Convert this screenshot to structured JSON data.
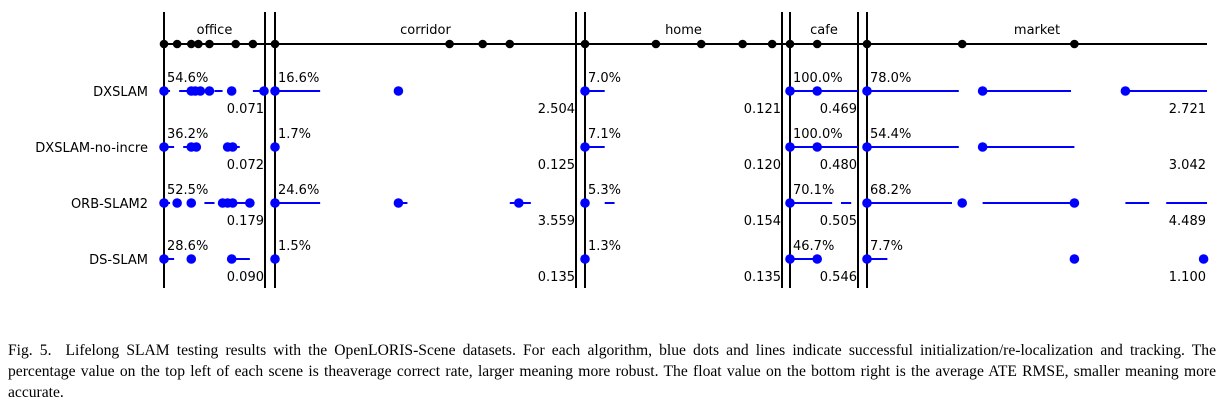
{
  "chart_data": {
    "type": "timeline",
    "description_colors": {
      "success": "#0000ff",
      "boundary": "#000000"
    },
    "scenes": [
      {
        "name": "office",
        "sequence_markers": [
          0,
          0.13,
          0.27,
          0.34,
          0.45,
          0.71,
          0.88
        ]
      },
      {
        "name": "corridor",
        "sequence_markers": [
          0,
          0.58,
          0.69,
          0.78
        ]
      },
      {
        "name": "home",
        "sequence_markers": [
          0,
          0.36,
          0.59,
          0.8,
          0.95
        ]
      },
      {
        "name": "cafe",
        "sequence_markers": [
          0,
          0.4
        ]
      },
      {
        "name": "market",
        "sequence_markers": [
          0,
          0.28,
          0.61
        ]
      }
    ],
    "algorithms": [
      {
        "name": "DXSLAM",
        "results": [
          {
            "scene": "office",
            "correct_rate": "54.6%",
            "ate_rmse": "0.071",
            "dots": [
              0,
              0.27,
              0.31,
              0.36,
              0.45,
              0.67,
              0.99
            ],
            "segments": [
              [
                0.0,
                0.06
              ],
              [
                0.15,
                0.27
              ],
              [
                0.5,
                0.58
              ],
              [
                0.88,
                0.98
              ]
            ]
          },
          {
            "scene": "corridor",
            "correct_rate": "16.6%",
            "ate_rmse": "2.504",
            "dots": [
              0,
              0.41
            ],
            "segments": [
              [
                0.0,
                0.15
              ]
            ]
          },
          {
            "scene": "home",
            "correct_rate": "7.0%",
            "ate_rmse": "0.121",
            "dots": [
              0
            ],
            "segments": [
              [
                0.0,
                0.1
              ]
            ]
          },
          {
            "scene": "cafe",
            "correct_rate": "100.0%",
            "ate_rmse": "0.469",
            "dots": [
              0,
              0.4
            ],
            "segments": [
              [
                0.0,
                1.0
              ]
            ]
          },
          {
            "scene": "market",
            "correct_rate": "78.0%",
            "ate_rmse": "2.721",
            "dots": [
              0,
              0.34,
              0.76
            ],
            "segments": [
              [
                0.0,
                0.27
              ],
              [
                0.34,
                0.6
              ],
              [
                0.76,
                1.0
              ]
            ]
          }
        ]
      },
      {
        "name": "DXSLAM-no-incre",
        "results": [
          {
            "scene": "office",
            "correct_rate": "36.2%",
            "ate_rmse": "0.072",
            "dots": [
              0,
              0.27,
              0.32,
              0.63,
              0.68
            ],
            "segments": [
              [
                0.0,
                0.1
              ],
              [
                0.19,
                0.32
              ],
              [
                0.63,
                0.75
              ]
            ]
          },
          {
            "scene": "corridor",
            "correct_rate": "1.7%",
            "ate_rmse": "0.125",
            "dots": [
              0
            ],
            "segments": []
          },
          {
            "scene": "home",
            "correct_rate": "7.1%",
            "ate_rmse": "0.120",
            "dots": [
              0
            ],
            "segments": [
              [
                0.0,
                0.1
              ]
            ]
          },
          {
            "scene": "cafe",
            "correct_rate": "100.0%",
            "ate_rmse": "0.480",
            "dots": [
              0,
              0.4
            ],
            "segments": [
              [
                0.0,
                1.0
              ]
            ]
          },
          {
            "scene": "market",
            "correct_rate": "54.4%",
            "ate_rmse": "3.042",
            "dots": [
              0,
              0.34
            ],
            "segments": [
              [
                0.0,
                0.27
              ],
              [
                0.34,
                0.61
              ]
            ]
          }
        ]
      },
      {
        "name": "ORB-SLAM2",
        "results": [
          {
            "scene": "office",
            "correct_rate": "52.5%",
            "ate_rmse": "0.179",
            "dots": [
              0,
              0.13,
              0.27,
              0.58,
              0.63,
              0.68,
              0.85
            ],
            "segments": [
              [
                0.0,
                0.06
              ],
              [
                0.4,
                0.5
              ],
              [
                0.58,
                0.85
              ]
            ]
          },
          {
            "scene": "corridor",
            "correct_rate": "24.6%",
            "ate_rmse": "3.559",
            "dots": [
              0,
              0.41,
              0.81
            ],
            "segments": [
              [
                0.0,
                0.15
              ],
              [
                0.41,
                0.44
              ],
              [
                0.78,
                0.85
              ]
            ]
          },
          {
            "scene": "home",
            "correct_rate": "5.3%",
            "ate_rmse": "0.154",
            "dots": [
              0
            ],
            "segments": [
              [
                0.1,
                0.15
              ]
            ]
          },
          {
            "scene": "cafe",
            "correct_rate": "70.1%",
            "ate_rmse": "0.505",
            "dots": [
              0
            ],
            "segments": [
              [
                0.0,
                0.62
              ],
              [
                0.75,
                0.9
              ]
            ]
          },
          {
            "scene": "market",
            "correct_rate": "68.2%",
            "ate_rmse": "4.489",
            "dots": [
              0,
              0.28,
              0.61
            ],
            "segments": [
              [
                0.0,
                0.25
              ],
              [
                0.34,
                0.61
              ],
              [
                0.76,
                0.83
              ],
              [
                0.88,
                1.0
              ]
            ]
          }
        ]
      },
      {
        "name": "DS-SLAM",
        "results": [
          {
            "scene": "office",
            "correct_rate": "28.6%",
            "ate_rmse": "0.090",
            "dots": [
              0,
              0.27,
              0.67
            ],
            "segments": [
              [
                0.0,
                0.1
              ],
              [
                0.67,
                0.85
              ]
            ]
          },
          {
            "scene": "corridor",
            "correct_rate": "1.5%",
            "ate_rmse": "0.135",
            "dots": [
              0
            ],
            "segments": []
          },
          {
            "scene": "home",
            "correct_rate": "1.3%",
            "ate_rmse": "0.135",
            "dots": [
              0
            ],
            "segments": []
          },
          {
            "scene": "cafe",
            "correct_rate": "46.7%",
            "ate_rmse": "0.546",
            "dots": [
              0,
              0.4
            ],
            "segments": [
              [
                0.0,
                0.45
              ]
            ]
          },
          {
            "scene": "market",
            "correct_rate": "7.7%",
            "ate_rmse": "1.100",
            "dots": [
              0,
              0.61,
              0.99
            ],
            "segments": [
              [
                0.0,
                0.06
              ]
            ]
          }
        ]
      }
    ]
  },
  "caption": {
    "label": "Fig. 5.",
    "text": "Lifelong SLAM testing results with the OpenLORIS-Scene datasets. For each algorithm, blue dots and lines indicate successful initialization/re-localization and tracking. The percentage value on the top left of each scene is theaverage correct rate, larger meaning more robust. The float value on the bottom right is the average ATE RMSE, smaller meaning more accurate."
  }
}
